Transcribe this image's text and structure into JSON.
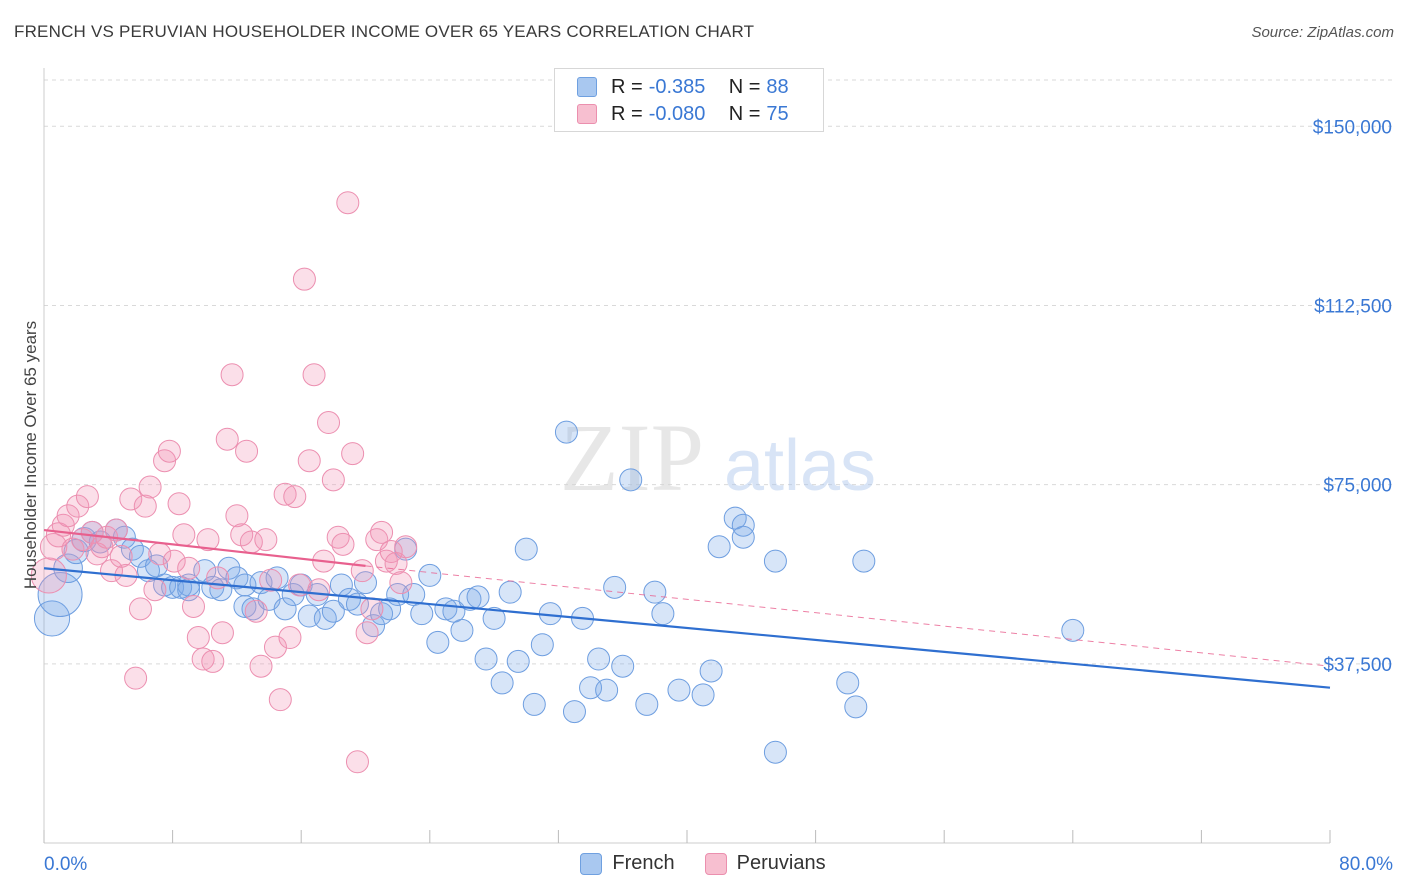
{
  "header": {
    "title": "FRENCH VS PERUVIAN HOUSEHOLDER INCOME OVER 65 YEARS CORRELATION CHART",
    "source": "Source: ZipAtlas.com"
  },
  "watermark": {
    "zip": "ZIP",
    "atlas": "atlas"
  },
  "stats": [
    {
      "r_label": "R =",
      "r_value": "-0.385",
      "n_label": "N =",
      "n_value": "88",
      "color": "#a9c8f0",
      "border": "#6fa0e0"
    },
    {
      "r_label": "R =",
      "r_value": "-0.080",
      "n_label": "N =",
      "n_value": "75",
      "color": "#f7bfd0",
      "border": "#eb8fae"
    }
  ],
  "legend": [
    {
      "label": "French",
      "color": "#a9c8f0",
      "border": "#6fa0e0"
    },
    {
      "label": "Peruvians",
      "color": "#f7bfd0",
      "border": "#eb8fae"
    }
  ],
  "colors": {
    "french_fill": "rgba(122,168,232,0.30)",
    "french_stroke": "#6e9ee0",
    "french_line": "#2f6fd0",
    "peru_fill": "rgba(242,150,182,0.30)",
    "peru_stroke": "#ec8fb0",
    "peru_line": "#e8608e",
    "axis_label": "#3a78d4",
    "grid": "#d9d9d9"
  },
  "chart_data": {
    "type": "scatter",
    "title": "FRENCH VS PERUVIAN HOUSEHOLDER INCOME OVER 65 YEARS CORRELATION CHART",
    "xlabel": "",
    "ylabel": "Householder Income Over 65 years",
    "xlim": [
      0,
      80
    ],
    "ylim": [
      0,
      160000
    ],
    "x_tick_labels": [
      {
        "value": 0,
        "label": "0.0%"
      },
      {
        "value": 80,
        "label": "80.0%"
      }
    ],
    "y_ticks": [
      {
        "value": 37500,
        "label": "$37,500"
      },
      {
        "value": 75000,
        "label": "$75,000"
      },
      {
        "value": 112500,
        "label": "$112,500"
      },
      {
        "value": 150000,
        "label": "$150,000"
      }
    ],
    "grid": true,
    "legend_position": "bottom-center",
    "series": [
      {
        "name": "French",
        "regression": {
          "x": [
            0,
            80
          ],
          "y": [
            57500,
            32500
          ],
          "style": "solid"
        },
        "points": [
          [
            0.5,
            47000,
            1.6
          ],
          [
            1.0,
            52000,
            2.0
          ],
          [
            1.5,
            57500,
            1.3
          ],
          [
            2.0,
            61000,
            1.1
          ],
          [
            2.5,
            63500,
            1.1
          ],
          [
            3.0,
            65000,
            1.0
          ],
          [
            3.5,
            63000,
            1.0
          ],
          [
            4.5,
            65500,
            1.0
          ],
          [
            5.0,
            64000,
            1.0
          ],
          [
            5.5,
            61500,
            1.0
          ],
          [
            6.0,
            60000,
            1.0
          ],
          [
            6.5,
            57000,
            1.0
          ],
          [
            7.0,
            58000,
            1.0
          ],
          [
            7.5,
            54000,
            1.0
          ],
          [
            8.0,
            53500,
            1.0
          ],
          [
            8.5,
            53500,
            1.0
          ],
          [
            9.0,
            54000,
            1.0
          ],
          [
            9.0,
            53000,
            1.0
          ],
          [
            10.0,
            57000,
            1.0
          ],
          [
            10.5,
            53500,
            1.0
          ],
          [
            11.0,
            53000,
            1.0
          ],
          [
            11.5,
            57500,
            1.0
          ],
          [
            12.0,
            55500,
            1.0
          ],
          [
            12.5,
            54000,
            1.0
          ],
          [
            12.5,
            49500,
            1.0
          ],
          [
            13.0,
            49000,
            1.0
          ],
          [
            13.5,
            54500,
            1.0
          ],
          [
            14.0,
            51000,
            1.0
          ],
          [
            14.5,
            55500,
            1.0
          ],
          [
            15.0,
            49000,
            1.0
          ],
          [
            15.5,
            52000,
            1.0
          ],
          [
            16.0,
            54000,
            1.0
          ],
          [
            16.5,
            47500,
            1.0
          ],
          [
            17.0,
            52000,
            1.0
          ],
          [
            17.5,
            47000,
            1.0
          ],
          [
            18.0,
            48500,
            1.0
          ],
          [
            18.5,
            54000,
            1.0
          ],
          [
            19.0,
            51000,
            1.0
          ],
          [
            19.5,
            50000,
            1.0
          ],
          [
            20.0,
            54500,
            1.0
          ],
          [
            20.5,
            45500,
            1.0
          ],
          [
            21.0,
            48000,
            1.0
          ],
          [
            21.5,
            49000,
            1.0
          ],
          [
            22.0,
            52000,
            1.0
          ],
          [
            22.5,
            61500,
            1.0
          ],
          [
            23.0,
            52000,
            1.0
          ],
          [
            23.5,
            48000,
            1.0
          ],
          [
            24.0,
            56000,
            1.0
          ],
          [
            24.5,
            42000,
            1.0
          ],
          [
            25.0,
            49000,
            1.0
          ],
          [
            25.5,
            48500,
            1.0
          ],
          [
            26.0,
            44500,
            1.0
          ],
          [
            26.5,
            51000,
            1.0
          ],
          [
            27.0,
            51500,
            1.0
          ],
          [
            27.5,
            38500,
            1.0
          ],
          [
            28.0,
            47000,
            1.0
          ],
          [
            28.5,
            33500,
            1.0
          ],
          [
            29.0,
            52500,
            1.0
          ],
          [
            29.5,
            38000,
            1.0
          ],
          [
            30.0,
            61500,
            1.0
          ],
          [
            30.5,
            29000,
            1.0
          ],
          [
            31.0,
            41500,
            1.0
          ],
          [
            31.5,
            48000,
            1.0
          ],
          [
            32.5,
            86000,
            1.0
          ],
          [
            33.0,
            27500,
            1.0
          ],
          [
            33.5,
            47000,
            1.0
          ],
          [
            34.0,
            32500,
            1.0
          ],
          [
            34.5,
            38500,
            1.0
          ],
          [
            35.0,
            32000,
            1.0
          ],
          [
            35.5,
            53500,
            1.0
          ],
          [
            36.0,
            37000,
            1.0
          ],
          [
            36.5,
            76000,
            1.0
          ],
          [
            37.5,
            29000,
            1.0
          ],
          [
            38.0,
            52500,
            1.0
          ],
          [
            38.5,
            48000,
            1.0
          ],
          [
            39.5,
            32000,
            1.0
          ],
          [
            41.0,
            31000,
            1.0
          ],
          [
            41.5,
            36000,
            1.0
          ],
          [
            42.0,
            62000,
            1.0
          ],
          [
            43.0,
            68000,
            1.0
          ],
          [
            43.5,
            66500,
            1.0
          ],
          [
            43.5,
            64000,
            1.0
          ],
          [
            45.5,
            19000,
            1.0
          ],
          [
            45.5,
            59000,
            1.0
          ],
          [
            50.0,
            33500,
            1.0
          ],
          [
            50.5,
            28500,
            1.0
          ],
          [
            51.0,
            59000,
            1.0
          ],
          [
            64.0,
            44500,
            1.0
          ]
        ]
      },
      {
        "name": "Peruvians",
        "regression": {
          "x": [
            0,
            20
          ],
          "y": [
            65500,
            58000
          ],
          "style": "solid"
        },
        "regression_extension": {
          "x": [
            20,
            80
          ],
          "y": [
            58000,
            37000
          ],
          "style": "dashed"
        },
        "points": [
          [
            0.3,
            56000,
            1.6
          ],
          [
            0.6,
            62000,
            1.2
          ],
          [
            0.9,
            64500,
            1.1
          ],
          [
            1.2,
            66500,
            1.0
          ],
          [
            1.5,
            68500,
            1.0
          ],
          [
            1.8,
            61500,
            1.0
          ],
          [
            2.1,
            70500,
            1.0
          ],
          [
            2.4,
            63500,
            1.0
          ],
          [
            2.7,
            72500,
            1.0
          ],
          [
            3.0,
            65000,
            1.0
          ],
          [
            3.3,
            60500,
            1.0
          ],
          [
            3.6,
            62000,
            1.0
          ],
          [
            3.9,
            64000,
            1.0
          ],
          [
            4.2,
            57000,
            1.0
          ],
          [
            4.5,
            65500,
            1.0
          ],
          [
            4.8,
            60000,
            1.0
          ],
          [
            5.1,
            56000,
            1.0
          ],
          [
            5.4,
            72000,
            1.0
          ],
          [
            5.7,
            34500,
            1.0
          ],
          [
            6.0,
            49000,
            1.0
          ],
          [
            6.3,
            70500,
            1.0
          ],
          [
            6.6,
            74500,
            1.0
          ],
          [
            6.9,
            53000,
            1.0
          ],
          [
            7.2,
            60500,
            1.0
          ],
          [
            7.5,
            80000,
            1.0
          ],
          [
            7.8,
            82000,
            1.0
          ],
          [
            8.1,
            59000,
            1.0
          ],
          [
            8.4,
            71000,
            1.0
          ],
          [
            8.7,
            64500,
            1.0
          ],
          [
            9.0,
            57500,
            1.0
          ],
          [
            9.3,
            49500,
            1.0
          ],
          [
            9.6,
            43000,
            1.0
          ],
          [
            9.9,
            38500,
            1.0
          ],
          [
            10.2,
            63500,
            1.0
          ],
          [
            10.5,
            38000,
            1.0
          ],
          [
            10.8,
            55500,
            1.0
          ],
          [
            11.1,
            44000,
            1.0
          ],
          [
            11.4,
            84500,
            1.0
          ],
          [
            11.7,
            98000,
            1.0
          ],
          [
            12.0,
            68500,
            1.0
          ],
          [
            12.3,
            64500,
            1.0
          ],
          [
            12.6,
            82000,
            1.0
          ],
          [
            12.9,
            63000,
            1.0
          ],
          [
            13.2,
            48500,
            1.0
          ],
          [
            13.5,
            37000,
            1.0
          ],
          [
            13.8,
            63500,
            1.0
          ],
          [
            14.1,
            55000,
            1.0
          ],
          [
            14.4,
            41000,
            1.0
          ],
          [
            14.7,
            30000,
            1.0
          ],
          [
            15.0,
            73000,
            1.0
          ],
          [
            15.3,
            43000,
            1.0
          ],
          [
            15.6,
            72500,
            1.0
          ],
          [
            15.9,
            54000,
            1.0
          ],
          [
            16.2,
            118000,
            1.0
          ],
          [
            16.5,
            80000,
            1.0
          ],
          [
            16.8,
            98000,
            1.0
          ],
          [
            17.1,
            53000,
            1.0
          ],
          [
            17.4,
            59000,
            1.0
          ],
          [
            17.7,
            88000,
            1.0
          ],
          [
            18.0,
            76000,
            1.0
          ],
          [
            18.3,
            64000,
            1.0
          ],
          [
            18.6,
            62500,
            1.0
          ],
          [
            18.9,
            134000,
            1.0
          ],
          [
            19.2,
            81500,
            1.0
          ],
          [
            19.5,
            17000,
            1.0
          ],
          [
            19.8,
            57000,
            1.0
          ],
          [
            20.1,
            44000,
            1.0
          ],
          [
            20.4,
            49000,
            1.0
          ],
          [
            20.7,
            63500,
            1.0
          ],
          [
            21.0,
            65000,
            1.0
          ],
          [
            21.3,
            59000,
            1.0
          ],
          [
            21.6,
            61000,
            1.0
          ],
          [
            21.9,
            58500,
            1.0
          ],
          [
            22.2,
            54500,
            1.0
          ],
          [
            22.5,
            62000,
            1.0
          ]
        ]
      }
    ]
  }
}
